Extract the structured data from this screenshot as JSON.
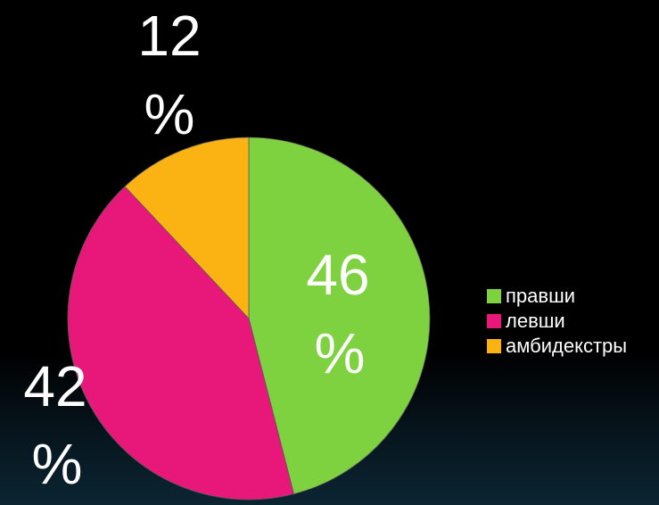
{
  "chart_data": {
    "type": "pie",
    "categories": [
      "правши",
      "левши",
      "амбидекстры"
    ],
    "values": [
      46,
      42,
      12
    ],
    "colors": [
      "#7ed13f",
      "#e8177a",
      "#fbb213"
    ],
    "labels": [
      {
        "number": "46",
        "unit": "%"
      },
      {
        "number": "42",
        "unit": "%"
      },
      {
        "number": "12",
        "unit": "%"
      }
    ],
    "legend_position": "right"
  }
}
